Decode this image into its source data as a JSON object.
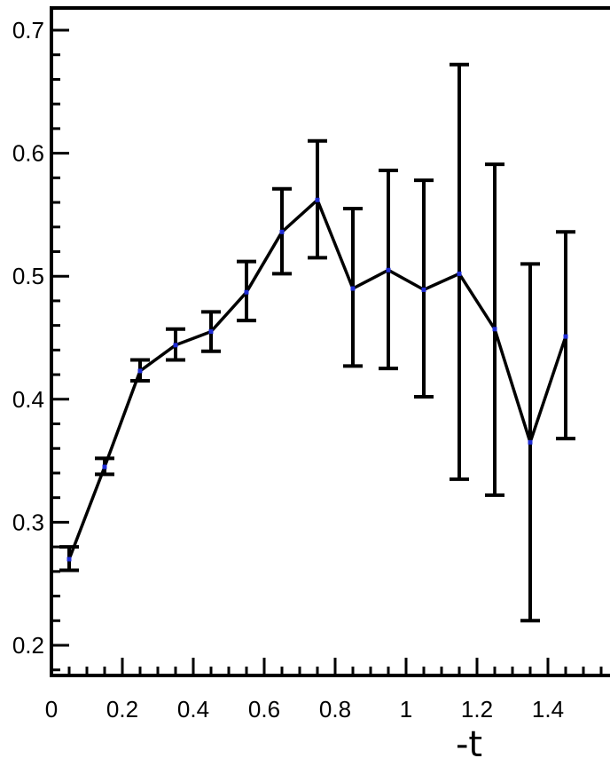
{
  "chart_data": {
    "type": "line",
    "xlabel": "-t",
    "ylabel": "",
    "xlim": [
      0,
      1.55
    ],
    "ylim": [
      0.175,
      0.715
    ],
    "x_ticks": [
      {
        "value": 0,
        "label": "0"
      },
      {
        "value": 0.2,
        "label": "0.2"
      },
      {
        "value": 0.4,
        "label": "0.4"
      },
      {
        "value": 0.6,
        "label": "0.6"
      },
      {
        "value": 0.8,
        "label": "0.8"
      },
      {
        "value": 1.0,
        "label": "1"
      },
      {
        "value": 1.2,
        "label": "1.2"
      },
      {
        "value": 1.4,
        "label": "1.4"
      }
    ],
    "y_ticks": [
      {
        "value": 0.2,
        "label": "0.2"
      },
      {
        "value": 0.3,
        "label": "0.3"
      },
      {
        "value": 0.4,
        "label": "0.4"
      },
      {
        "value": 0.5,
        "label": "0.5"
      },
      {
        "value": 0.6,
        "label": "0.6"
      },
      {
        "value": 0.7,
        "label": "0.7"
      }
    ],
    "grid": false,
    "line_color": "#000000",
    "marker_color": "#1f2dd6",
    "series": [
      {
        "x": [
          0.05,
          0.15,
          0.25,
          0.35,
          0.45,
          0.55,
          0.65,
          0.75,
          0.85,
          0.95,
          1.05,
          1.15,
          1.25,
          1.35,
          1.45
        ],
        "y": [
          0.27,
          0.345,
          0.423,
          0.444,
          0.455,
          0.487,
          0.536,
          0.562,
          0.49,
          0.505,
          0.489,
          0.502,
          0.457,
          0.365,
          0.451
        ],
        "ylow": [
          0.261,
          0.339,
          0.415,
          0.432,
          0.439,
          0.464,
          0.502,
          0.515,
          0.427,
          0.425,
          0.402,
          0.335,
          0.322,
          0.22,
          0.368
        ],
        "yhigh": [
          0.28,
          0.352,
          0.432,
          0.457,
          0.471,
          0.512,
          0.571,
          0.61,
          0.555,
          0.586,
          0.578,
          0.672,
          0.591,
          0.51,
          0.536
        ]
      }
    ]
  }
}
